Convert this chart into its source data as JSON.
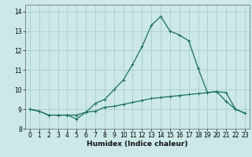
{
  "title": "",
  "xlabel": "Humidex (Indice chaleur)",
  "background_color": "#cce8e8",
  "grid_color": "#aacccc",
  "line_color": "#1a7060",
  "xlim": [
    -0.5,
    23.5
  ],
  "ylim": [
    8.0,
    14.35
  ],
  "yticks": [
    8,
    9,
    10,
    11,
    12,
    13,
    14
  ],
  "xticks": [
    0,
    1,
    2,
    3,
    4,
    5,
    6,
    7,
    8,
    9,
    10,
    11,
    12,
    13,
    14,
    15,
    16,
    17,
    18,
    19,
    20,
    21,
    22,
    23
  ],
  "series1_x": [
    0,
    1,
    2,
    3,
    4,
    5,
    6,
    7,
    8,
    9,
    10,
    11,
    12,
    13,
    14,
    15,
    16,
    17,
    18,
    19,
    20,
    21,
    22,
    23
  ],
  "series1_y": [
    9.0,
    8.9,
    8.7,
    8.7,
    8.7,
    8.7,
    8.85,
    8.9,
    9.1,
    9.15,
    9.25,
    9.35,
    9.45,
    9.55,
    9.6,
    9.65,
    9.7,
    9.75,
    9.8,
    9.85,
    9.9,
    9.85,
    9.0,
    8.8
  ],
  "series2_x": [
    0,
    1,
    2,
    3,
    4,
    5,
    6,
    7,
    8,
    9,
    10,
    11,
    12,
    13,
    14,
    15,
    16,
    17,
    18,
    19,
    20,
    21,
    22,
    23
  ],
  "series2_y": [
    9.0,
    8.9,
    8.7,
    8.7,
    8.7,
    8.5,
    8.85,
    9.3,
    9.5,
    10.0,
    10.5,
    11.3,
    12.2,
    13.3,
    13.75,
    13.0,
    12.8,
    12.5,
    11.1,
    9.85,
    9.9,
    9.4,
    9.0,
    8.8
  ]
}
